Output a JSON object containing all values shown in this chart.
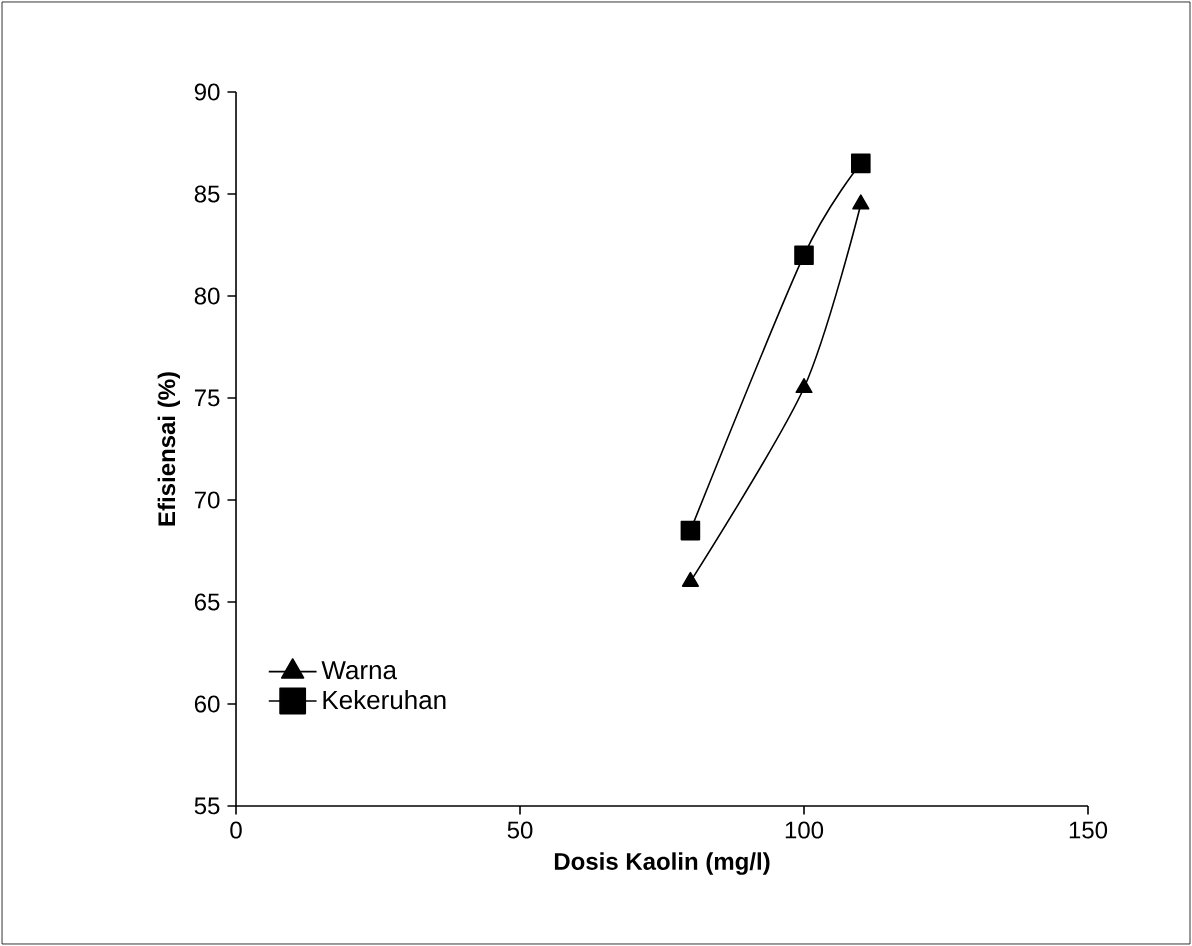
{
  "chart_data": {
    "type": "line",
    "xlabel": "Dosis Kaolin (mg/l)",
    "ylabel": "Efisiensai (%)",
    "xlim": [
      0,
      150
    ],
    "xticks": [
      0,
      50,
      100,
      150
    ],
    "ylim": [
      55,
      90
    ],
    "yticks": [
      55,
      60,
      65,
      70,
      75,
      80,
      85,
      90
    ],
    "grid": false,
    "legend": "bottom left",
    "line_style": "solid",
    "series": [
      {
        "name": "Warna",
        "color": "#000000",
        "marker": "triangle",
        "x": [
          80,
          100,
          110
        ],
        "values": [
          66,
          75.5,
          84.5
        ]
      },
      {
        "name": "Kekeruhan",
        "color": "#000000",
        "marker": "square",
        "x": [
          80,
          100,
          110
        ],
        "values": [
          68.5,
          82,
          86.5
        ]
      }
    ]
  }
}
